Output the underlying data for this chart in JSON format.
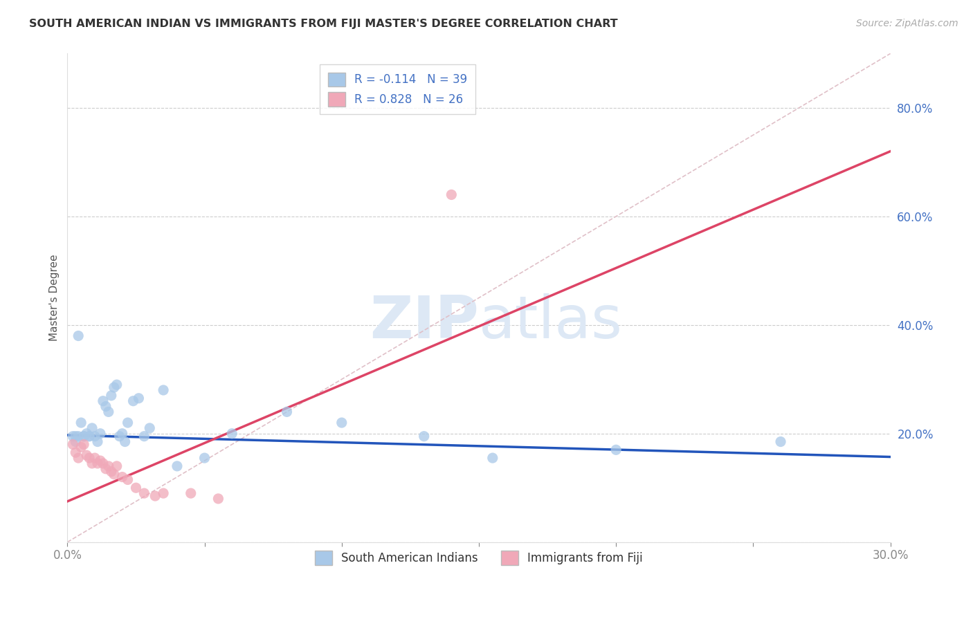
{
  "title": "SOUTH AMERICAN INDIAN VS IMMIGRANTS FROM FIJI MASTER'S DEGREE CORRELATION CHART",
  "source": "Source: ZipAtlas.com",
  "ylabel": "Master's Degree",
  "xlim": [
    0.0,
    0.3
  ],
  "ylim": [
    0.0,
    0.9
  ],
  "xticks": [
    0.0,
    0.05,
    0.1,
    0.15,
    0.2,
    0.25,
    0.3
  ],
  "yticks": [
    0.0,
    0.2,
    0.4,
    0.6,
    0.8
  ],
  "ytick_labels": [
    "",
    "20.0%",
    "40.0%",
    "60.0%",
    "80.0%"
  ],
  "xtick_labels": [
    "0.0%",
    "",
    "",
    "",
    "",
    "",
    "30.0%"
  ],
  "legend1_label": "R = -0.114   N = 39",
  "legend2_label": "R = 0.828   N = 26",
  "legend3_label": "South American Indians",
  "legend4_label": "Immigrants from Fiji",
  "blue_color": "#a8c8e8",
  "pink_color": "#f0a8b8",
  "line_blue": "#2255bb",
  "line_pink": "#dd4466",
  "diag_color": "#e0c0c8",
  "watermark_color": "#dde8f5",
  "blue_scatter_x": [
    0.002,
    0.003,
    0.004,
    0.005,
    0.006,
    0.007,
    0.008,
    0.009,
    0.01,
    0.011,
    0.012,
    0.013,
    0.014,
    0.015,
    0.016,
    0.017,
    0.018,
    0.019,
    0.02,
    0.021,
    0.022,
    0.024,
    0.026,
    0.028,
    0.03,
    0.035,
    0.04,
    0.05,
    0.06,
    0.08,
    0.1,
    0.13,
    0.155,
    0.2,
    0.26,
    0.003,
    0.004,
    0.006,
    0.008
  ],
  "blue_scatter_y": [
    0.195,
    0.195,
    0.195,
    0.22,
    0.195,
    0.2,
    0.195,
    0.21,
    0.195,
    0.185,
    0.2,
    0.26,
    0.25,
    0.24,
    0.27,
    0.285,
    0.29,
    0.195,
    0.2,
    0.185,
    0.22,
    0.26,
    0.265,
    0.195,
    0.21,
    0.28,
    0.14,
    0.155,
    0.2,
    0.24,
    0.22,
    0.195,
    0.155,
    0.17,
    0.185,
    0.185,
    0.38,
    0.195,
    0.195
  ],
  "pink_scatter_x": [
    0.002,
    0.003,
    0.004,
    0.005,
    0.006,
    0.007,
    0.008,
    0.009,
    0.01,
    0.011,
    0.012,
    0.013,
    0.014,
    0.015,
    0.016,
    0.017,
    0.018,
    0.02,
    0.022,
    0.025,
    0.028,
    0.032,
    0.035,
    0.045,
    0.055,
    0.14
  ],
  "pink_scatter_y": [
    0.18,
    0.165,
    0.155,
    0.175,
    0.18,
    0.16,
    0.155,
    0.145,
    0.155,
    0.145,
    0.15,
    0.145,
    0.135,
    0.14,
    0.13,
    0.125,
    0.14,
    0.12,
    0.115,
    0.1,
    0.09,
    0.085,
    0.09,
    0.09,
    0.08,
    0.64
  ],
  "blue_trend_x": [
    0.0,
    0.3
  ],
  "blue_trend_y": [
    0.197,
    0.157
  ],
  "pink_trend_x": [
    0.0,
    0.3
  ],
  "pink_trend_y": [
    0.075,
    0.72
  ],
  "diag_line_x": [
    0.0,
    0.3
  ],
  "diag_line_y": [
    0.0,
    0.9
  ]
}
